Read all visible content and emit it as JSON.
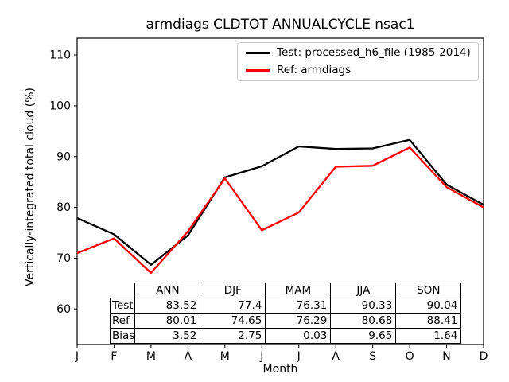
{
  "title": "armdiags CLDTOT ANNUALCYCLE nsac1",
  "axes": {
    "ylabel": "Vertically-integrated total cloud (%)",
    "xlabel": "Month",
    "yticks": [
      60,
      70,
      80,
      90,
      100,
      110
    ],
    "xticklabels": [
      "J",
      "F",
      "M",
      "A",
      "M",
      "J",
      "J",
      "A",
      "S",
      "O",
      "N",
      "D"
    ]
  },
  "chart_data": {
    "type": "line",
    "title": "armdiags CLDTOT ANNUALCYCLE nsac1",
    "xlabel": "Month",
    "ylabel": "Vertically-integrated total cloud (%)",
    "categories": [
      "J",
      "F",
      "M",
      "A",
      "M",
      "J",
      "J",
      "A",
      "S",
      "O",
      "N",
      "D"
    ],
    "ylim": [
      53.0,
      113.3
    ],
    "grid": false,
    "legend_position": "upper right",
    "series": [
      {
        "name": "Test: processed_h6_file (1985-2014)",
        "color": "#000000",
        "values": [
          77.9,
          74.7,
          68.7,
          74.5,
          85.9,
          88.1,
          92.0,
          91.5,
          91.6,
          93.3,
          84.5,
          80.5
        ]
      },
      {
        "name": "Ref: armdiags",
        "color": "#ff0000",
        "values": [
          71.0,
          73.9,
          67.1,
          75.3,
          85.7,
          75.5,
          79.0,
          88.0,
          88.2,
          91.8,
          84.0,
          80.0
        ]
      }
    ]
  },
  "table": {
    "columns": [
      "ANN",
      "DJF",
      "MAM",
      "JJA",
      "SON"
    ],
    "rows": [
      {
        "label": "Test",
        "values": [
          "83.52",
          "77.4",
          "76.31",
          "90.33",
          "90.04"
        ]
      },
      {
        "label": "Ref",
        "values": [
          "80.01",
          "74.65",
          "76.29",
          "80.68",
          "88.41"
        ]
      },
      {
        "label": "Bias",
        "values": [
          "3.52",
          "2.75",
          "0.03",
          "9.65",
          "1.64"
        ]
      }
    ]
  }
}
